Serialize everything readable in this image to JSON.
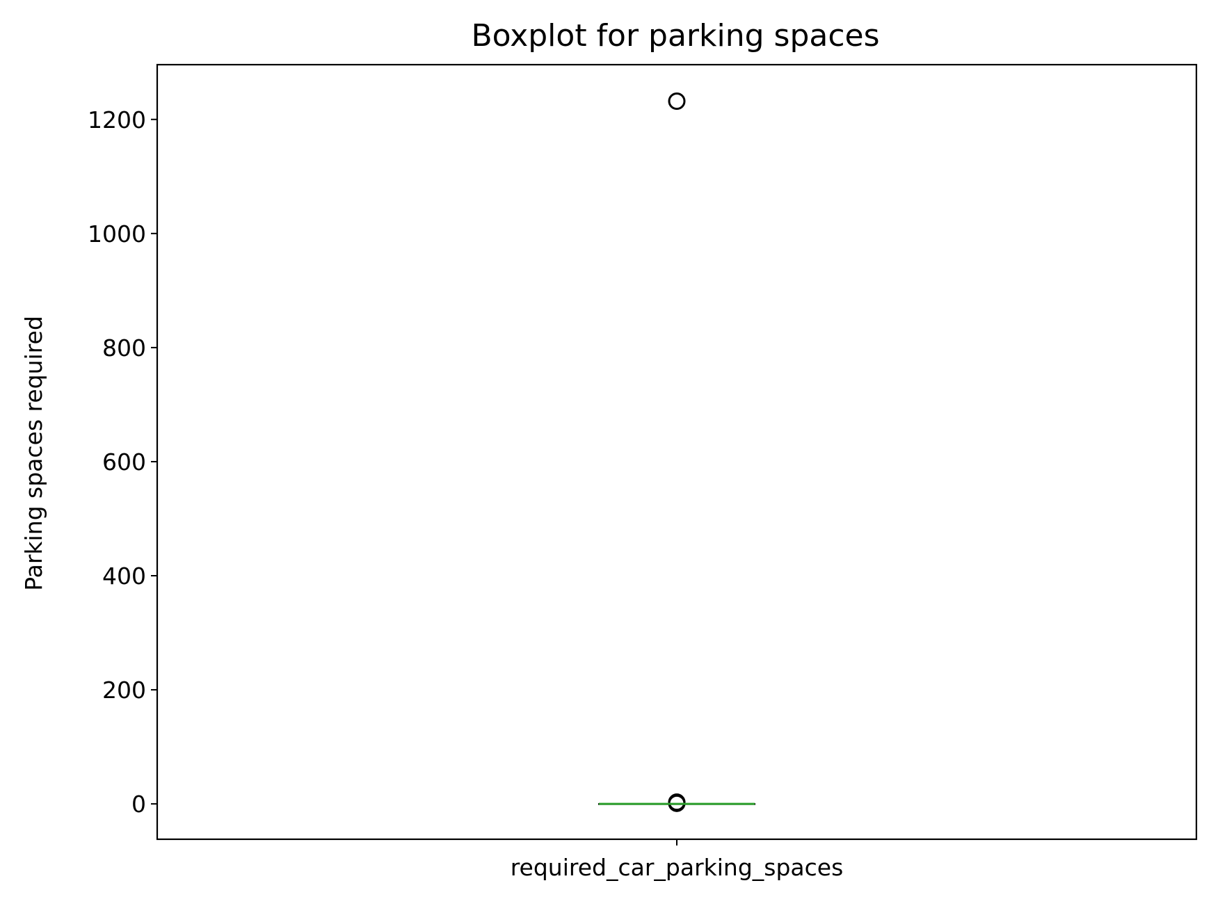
{
  "chart_data": {
    "type": "box",
    "title": "Boxplot for parking spaces",
    "xlabel": "",
    "ylabel": "Parking spaces required",
    "categories": [
      "required_car_parking_spaces"
    ],
    "ylim": [
      -62,
      1296
    ],
    "yticks": [
      0,
      200,
      400,
      600,
      800,
      1000,
      1200
    ],
    "ytick_labels": [
      "0",
      "200",
      "400",
      "600",
      "800",
      "1000",
      "1200"
    ],
    "boxes": [
      {
        "category": "required_car_parking_spaces",
        "min": 0,
        "q1": 0,
        "median": 0,
        "q3": 0,
        "max": 0,
        "outliers": [
          1,
          2,
          3,
          1232
        ]
      }
    ],
    "grid": false,
    "colors": {
      "median": "#2ca02c",
      "box": "#000000",
      "outlier": "#000000"
    }
  }
}
